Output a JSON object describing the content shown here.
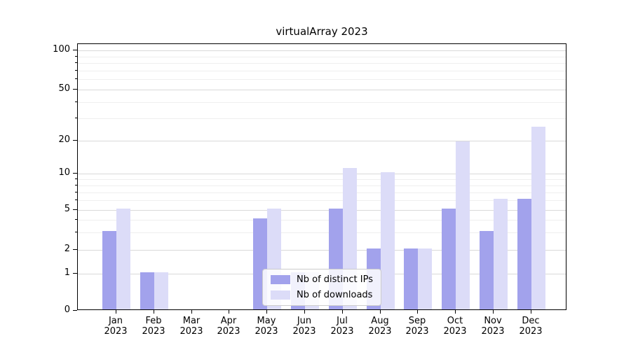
{
  "chart_data": {
    "type": "bar",
    "title": "virtualArray 2023",
    "categories": [
      "Jan 2023",
      "Feb 2023",
      "Mar 2023",
      "Apr 2023",
      "May 2023",
      "Jun 2023",
      "Jul 2023",
      "Aug 2023",
      "Sep 2023",
      "Oct 2023",
      "Nov 2023",
      "Dec 2023"
    ],
    "series": [
      {
        "name": "Nb of distinct IPs",
        "color": "#a2a2ec",
        "values": [
          3,
          1,
          0,
          0,
          4,
          1,
          5,
          2,
          2,
          5,
          3,
          6
        ]
      },
      {
        "name": "Nb of downloads",
        "color": "#dcdcf8",
        "values": [
          5,
          1,
          0,
          0,
          5,
          1,
          11,
          10,
          2,
          19,
          6,
          25
        ]
      }
    ],
    "yscale": "symlog",
    "yticks": [
      0,
      1,
      2,
      5,
      10,
      20,
      50,
      100
    ],
    "yticks_minor": [
      3,
      4,
      6,
      7,
      8,
      9,
      30,
      40,
      60,
      70,
      80,
      90
    ],
    "ylim": [
      0,
      115
    ],
    "grid": true,
    "legend_position": "lower center"
  },
  "colors": {
    "grid_major": "#d9d9d9",
    "grid_minor": "#efefef",
    "axis": "#000000",
    "legend_border": "#cccccc"
  }
}
